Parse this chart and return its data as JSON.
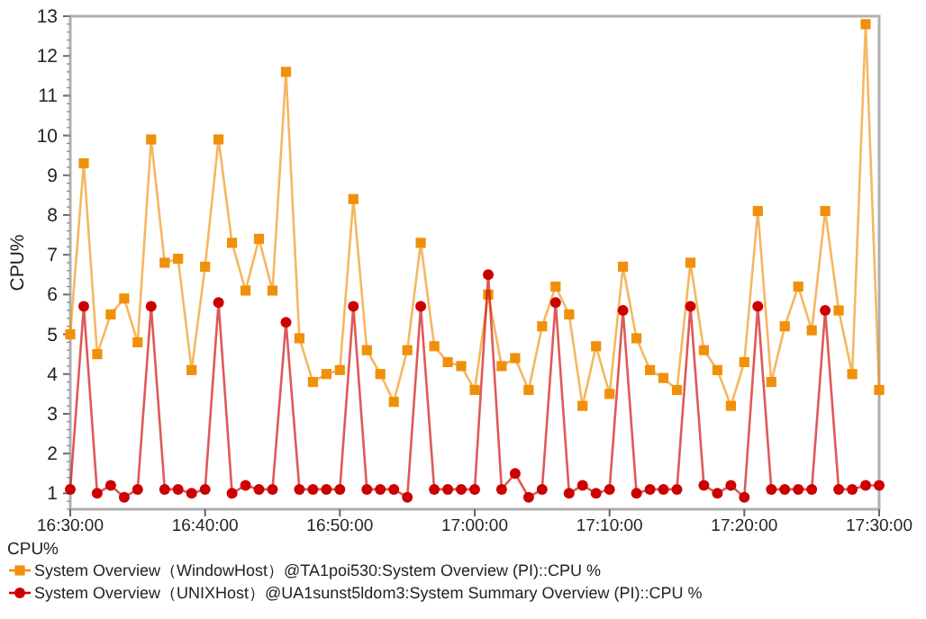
{
  "chart_data": {
    "type": "line",
    "ylabel": "CPU%",
    "legend_title": "CPU%",
    "legend": "bottom",
    "line_style": "solid",
    "x": [
      16.5,
      16.5167,
      16.5333,
      16.55,
      16.5667,
      16.5833,
      16.6,
      16.6167,
      16.6333,
      16.65,
      16.6667,
      16.6833,
      16.7,
      16.7167,
      16.7333,
      16.75,
      16.7667,
      16.7833,
      16.8,
      16.8167,
      16.8333,
      16.85,
      16.8667,
      16.8833,
      16.9,
      16.9167,
      16.9333,
      16.95,
      16.9667,
      16.9833,
      17.0,
      17.0167,
      17.0333,
      17.05,
      17.0667,
      17.0833,
      17.1,
      17.1167,
      17.1333,
      17.15,
      17.1667,
      17.1833,
      17.2,
      17.2167,
      17.2333,
      17.25,
      17.2667,
      17.2833,
      17.3,
      17.3167,
      17.3333,
      17.35,
      17.3667,
      17.3833,
      17.4,
      17.4167,
      17.4333,
      17.45,
      17.4667,
      17.4833,
      17.5
    ],
    "series": [
      {
        "name": "System Overview（WindowHost）@TA1poi530:System Overview (PI)::CPU %",
        "color": "#f0900a",
        "marker": "square",
        "values": [
          5.0,
          9.3,
          4.5,
          5.5,
          5.9,
          4.8,
          9.9,
          6.8,
          6.9,
          4.1,
          6.7,
          9.9,
          7.3,
          6.1,
          7.4,
          6.1,
          11.6,
          4.9,
          3.8,
          4.0,
          4.1,
          8.4,
          4.6,
          4.0,
          3.3,
          4.6,
          7.3,
          4.7,
          4.3,
          4.2,
          3.6,
          6.0,
          4.2,
          4.4,
          3.6,
          5.2,
          6.2,
          5.5,
          3.2,
          4.7,
          3.5,
          6.7,
          4.9,
          4.1,
          3.9,
          3.6,
          6.8,
          4.6,
          4.1,
          3.2,
          4.3,
          8.1,
          3.8,
          5.2,
          6.2,
          5.1,
          8.1,
          5.6,
          4.0,
          12.8,
          3.6
        ]
      },
      {
        "name": "System Overview（UNIXHost）@UA1sunst5ldom3:System Summary Overview (PI)::CPU %",
        "color": "#cc0000",
        "marker": "circle",
        "values": [
          1.1,
          5.7,
          1.0,
          1.2,
          0.9,
          1.1,
          5.7,
          1.1,
          1.1,
          1.0,
          1.1,
          5.8,
          1.0,
          1.2,
          1.1,
          1.1,
          5.3,
          1.1,
          1.1,
          1.1,
          1.1,
          5.7,
          1.1,
          1.1,
          1.1,
          0.9,
          5.7,
          1.1,
          1.1,
          1.1,
          1.1,
          6.5,
          1.1,
          1.5,
          0.9,
          1.1,
          5.8,
          1.0,
          1.2,
          1.0,
          1.1,
          5.6,
          1.0,
          1.1,
          1.1,
          1.1,
          5.7,
          1.2,
          1.0,
          1.2,
          0.9,
          5.7,
          1.1,
          1.1,
          1.1,
          1.1,
          5.6,
          1.1,
          1.1,
          1.2,
          1.2
        ]
      }
    ],
    "xlim": [
      16.5,
      17.5
    ],
    "xticks": [
      {
        "value": 16.5,
        "label": "16:30:00"
      },
      {
        "value": 16.6667,
        "label": "16:40:00"
      },
      {
        "value": 16.8333,
        "label": "16:50:00"
      },
      {
        "value": 17.0,
        "label": "17:00:00"
      },
      {
        "value": 17.1667,
        "label": "17:10:00"
      },
      {
        "value": 17.3333,
        "label": "17:20:00"
      },
      {
        "value": 17.5,
        "label": "17:30:00"
      }
    ],
    "ylim": [
      0.6,
      13
    ],
    "yticks": [
      1,
      2,
      3,
      4,
      5,
      6,
      7,
      8,
      9,
      10,
      11,
      12,
      13
    ]
  }
}
